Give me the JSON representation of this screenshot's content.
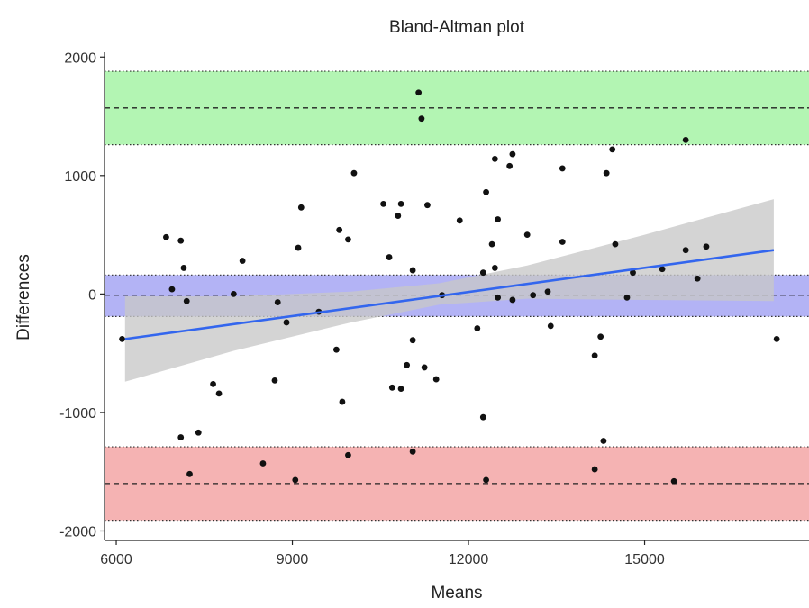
{
  "chart_data": {
    "type": "scatter",
    "title": "Bland-Altman plot",
    "xlabel": "Means",
    "ylabel": "Differences",
    "xlim": [
      5800,
      17800
    ],
    "ylim": [
      -2080,
      2040
    ],
    "xticks": [
      6000,
      9000,
      12000,
      15000
    ],
    "yticks": [
      2000,
      1000,
      0,
      -1000,
      -2000
    ],
    "grid": false,
    "bands": [
      {
        "name": "upper limit of agreement",
        "color": "#b3f5b3",
        "lower": 1260,
        "upper": 1880,
        "center": 1570
      },
      {
        "name": "mean difference",
        "color": "#b3b3f5",
        "lower": -190,
        "upper": 160,
        "center": -10
      },
      {
        "name": "lower limit of agreement",
        "color": "#f5b3b3",
        "lower": -1910,
        "upper": -1290,
        "center": -1600
      }
    ],
    "regression": {
      "color": "#3366ee",
      "confidence_color": "#c8c8c8",
      "points": [
        {
          "x": 6150,
          "y": -380,
          "lower": -740,
          "upper": -20
        },
        {
          "x": 8000,
          "y": -250,
          "lower": -480,
          "upper": -20
        },
        {
          "x": 10000,
          "y": -110,
          "lower": -240,
          "upper": 20
        },
        {
          "x": 11500,
          "y": 0,
          "lower": -90,
          "upper": 90
        },
        {
          "x": 13000,
          "y": 100,
          "lower": -40,
          "upper": 240
        },
        {
          "x": 15000,
          "y": 230,
          "lower": -50,
          "upper": 500
        },
        {
          "x": 17200,
          "y": 370,
          "lower": -60,
          "upper": 800
        }
      ]
    },
    "points": [
      {
        "x": 11150,
        "y": 1700
      },
      {
        "x": 11200,
        "y": 1480
      },
      {
        "x": 15700,
        "y": 1300
      },
      {
        "x": 6100,
        "y": -380
      },
      {
        "x": 6850,
        "y": 480
      },
      {
        "x": 6950,
        "y": 40
      },
      {
        "x": 7100,
        "y": 450
      },
      {
        "x": 7150,
        "y": 220
      },
      {
        "x": 7200,
        "y": -60
      },
      {
        "x": 7100,
        "y": -1210
      },
      {
        "x": 7400,
        "y": -1170
      },
      {
        "x": 7650,
        "y": -760
      },
      {
        "x": 7750,
        "y": -840
      },
      {
        "x": 8000,
        "y": 0
      },
      {
        "x": 8150,
        "y": 280
      },
      {
        "x": 8700,
        "y": -730
      },
      {
        "x": 8750,
        "y": -70
      },
      {
        "x": 8900,
        "y": -240
      },
      {
        "x": 9100,
        "y": 390
      },
      {
        "x": 9150,
        "y": 730
      },
      {
        "x": 9450,
        "y": -150
      },
      {
        "x": 9750,
        "y": -470
      },
      {
        "x": 9800,
        "y": 540
      },
      {
        "x": 9850,
        "y": -910
      },
      {
        "x": 9950,
        "y": 460
      },
      {
        "x": 10050,
        "y": 1020
      },
      {
        "x": 10550,
        "y": 760
      },
      {
        "x": 10650,
        "y": 310
      },
      {
        "x": 10700,
        "y": -790
      },
      {
        "x": 10800,
        "y": 660
      },
      {
        "x": 10850,
        "y": 760
      },
      {
        "x": 10850,
        "y": -800
      },
      {
        "x": 10950,
        "y": -600
      },
      {
        "x": 11050,
        "y": 200
      },
      {
        "x": 11050,
        "y": -390
      },
      {
        "x": 11250,
        "y": -620
      },
      {
        "x": 11300,
        "y": 750
      },
      {
        "x": 11450,
        "y": -720
      },
      {
        "x": 11550,
        "y": -10
      },
      {
        "x": 11850,
        "y": 620
      },
      {
        "x": 12150,
        "y": -290
      },
      {
        "x": 12250,
        "y": 180
      },
      {
        "x": 12250,
        "y": -1040
      },
      {
        "x": 12300,
        "y": 860
      },
      {
        "x": 12400,
        "y": 420
      },
      {
        "x": 12450,
        "y": 1140
      },
      {
        "x": 12450,
        "y": 220
      },
      {
        "x": 12500,
        "y": -30
      },
      {
        "x": 12500,
        "y": 630
      },
      {
        "x": 12700,
        "y": 1080
      },
      {
        "x": 12750,
        "y": 1180
      },
      {
        "x": 12750,
        "y": -50
      },
      {
        "x": 13000,
        "y": 500
      },
      {
        "x": 13100,
        "y": -10
      },
      {
        "x": 13350,
        "y": 20
      },
      {
        "x": 13400,
        "y": -270
      },
      {
        "x": 13600,
        "y": 1060
      },
      {
        "x": 13600,
        "y": 440
      },
      {
        "x": 14150,
        "y": -520
      },
      {
        "x": 14250,
        "y": -360
      },
      {
        "x": 14300,
        "y": -1240
      },
      {
        "x": 14350,
        "y": 1020
      },
      {
        "x": 14450,
        "y": 1220
      },
      {
        "x": 14500,
        "y": 420
      },
      {
        "x": 14700,
        "y": -30
      },
      {
        "x": 14800,
        "y": 180
      },
      {
        "x": 15300,
        "y": 210
      },
      {
        "x": 15700,
        "y": 370
      },
      {
        "x": 15900,
        "y": 130
      },
      {
        "x": 16050,
        "y": 400
      },
      {
        "x": 17250,
        "y": -380
      },
      {
        "x": 7250,
        "y": -1520
      },
      {
        "x": 8500,
        "y": -1430
      },
      {
        "x": 9050,
        "y": -1570
      },
      {
        "x": 9950,
        "y": -1360
      },
      {
        "x": 11050,
        "y": -1330
      },
      {
        "x": 12300,
        "y": -1570
      },
      {
        "x": 14150,
        "y": -1480
      },
      {
        "x": 15500,
        "y": -1580
      }
    ]
  }
}
